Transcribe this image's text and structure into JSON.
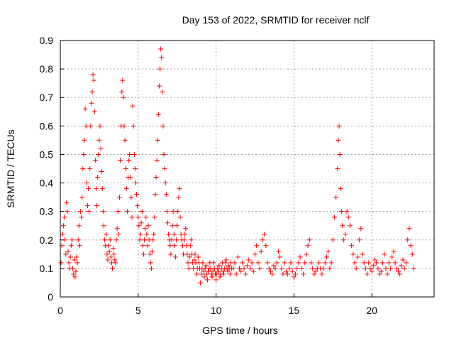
{
  "chart_data": {
    "type": "scatter",
    "title": "Day 153 of 2022, SRMTID for receiver nclf",
    "xlabel": "GPS time / hours",
    "ylabel": "SRMTID / TECUs",
    "xlim": [
      0,
      24
    ],
    "ylim": [
      0,
      0.9
    ],
    "xticks": [
      0,
      5,
      10,
      15,
      20
    ],
    "yticks": [
      0,
      0.1,
      0.2,
      0.3,
      0.4,
      0.5,
      0.6,
      0.7,
      0.8,
      0.9
    ],
    "grid": true,
    "marker": "+",
    "series": [
      {
        "name": "SRMTID",
        "color": "#ff0000",
        "x": [
          0.05,
          0.1,
          0.15,
          0.2,
          0.25,
          0.3,
          0.35,
          0.4,
          0.45,
          0.5,
          0.55,
          0.6,
          0.65,
          0.7,
          0.75,
          0.8,
          0.85,
          0.9,
          0.95,
          1.0,
          1.05,
          1.1,
          1.15,
          1.2,
          1.25,
          1.3,
          1.35,
          1.4,
          1.45,
          1.5,
          1.55,
          1.6,
          1.65,
          1.7,
          1.75,
          1.8,
          1.85,
          1.9,
          1.95,
          2.0,
          2.05,
          2.1,
          2.15,
          2.2,
          2.25,
          2.3,
          2.35,
          2.4,
          2.45,
          2.5,
          2.55,
          2.6,
          2.65,
          2.7,
          2.75,
          2.8,
          2.85,
          2.9,
          2.95,
          3.0,
          3.05,
          3.1,
          3.15,
          3.2,
          3.25,
          3.3,
          3.35,
          3.4,
          3.45,
          3.5,
          3.55,
          3.6,
          3.65,
          3.7,
          3.75,
          3.8,
          3.85,
          3.9,
          3.95,
          4.0,
          4.05,
          4.1,
          4.15,
          4.2,
          4.25,
          4.3,
          4.35,
          4.4,
          4.45,
          4.5,
          4.55,
          4.6,
          4.65,
          4.7,
          4.75,
          4.8,
          4.85,
          4.9,
          4.95,
          5.0,
          5.05,
          5.1,
          5.15,
          5.2,
          5.25,
          5.3,
          5.35,
          5.4,
          5.45,
          5.5,
          5.55,
          5.6,
          5.65,
          5.7,
          5.75,
          5.8,
          5.85,
          5.9,
          5.95,
          6.0,
          6.05,
          6.1,
          6.15,
          6.2,
          6.25,
          6.3,
          6.35,
          6.4,
          6.45,
          6.5,
          6.55,
          6.6,
          6.65,
          6.7,
          6.75,
          6.8,
          6.85,
          6.9,
          6.95,
          7.0,
          7.05,
          7.1,
          7.15,
          7.2,
          7.25,
          7.3,
          7.35,
          7.4,
          7.45,
          7.5,
          7.55,
          7.6,
          7.65,
          7.7,
          7.75,
          7.8,
          7.85,
          7.9,
          7.95,
          8.0,
          8.05,
          8.1,
          8.15,
          8.2,
          8.25,
          8.3,
          8.35,
          8.4,
          8.45,
          8.5,
          8.55,
          8.6,
          8.65,
          8.7,
          8.75,
          8.8,
          8.85,
          8.9,
          8.95,
          9.0,
          9.05,
          9.1,
          9.15,
          9.2,
          9.25,
          9.3,
          9.35,
          9.4,
          9.45,
          9.5,
          9.55,
          9.6,
          9.65,
          9.7,
          9.75,
          9.8,
          9.85,
          9.9,
          9.95,
          10.0,
          10.05,
          10.1,
          10.15,
          10.2,
          10.25,
          10.3,
          10.35,
          10.4,
          10.45,
          10.5,
          10.55,
          10.6,
          10.65,
          10.7,
          10.75,
          10.8,
          10.85,
          10.9,
          10.95,
          11.0,
          11.1,
          11.2,
          11.3,
          11.4,
          11.5,
          11.6,
          11.7,
          11.8,
          11.9,
          12.0,
          12.1,
          12.2,
          12.3,
          12.4,
          12.5,
          12.6,
          12.7,
          12.8,
          12.9,
          13.0,
          13.1,
          13.2,
          13.3,
          13.4,
          13.5,
          13.6,
          13.7,
          13.8,
          13.9,
          14.0,
          14.1,
          14.2,
          14.3,
          14.4,
          14.5,
          14.6,
          14.7,
          14.8,
          14.9,
          15.0,
          15.1,
          15.2,
          15.3,
          15.4,
          15.5,
          15.6,
          15.7,
          15.8,
          15.9,
          16.0,
          16.1,
          16.2,
          16.3,
          16.4,
          16.5,
          16.6,
          16.7,
          16.8,
          16.9,
          17.0,
          17.1,
          17.2,
          17.3,
          17.4,
          17.5,
          17.6,
          17.7,
          17.8,
          17.85,
          17.9,
          17.95,
          18.0,
          18.05,
          18.1,
          18.2,
          18.3,
          18.4,
          18.5,
          18.6,
          18.7,
          18.8,
          18.9,
          19.0,
          19.1,
          19.2,
          19.3,
          19.4,
          19.5,
          19.6,
          19.7,
          19.8,
          19.9,
          20.0,
          20.1,
          20.2,
          20.3,
          20.4,
          20.5,
          20.6,
          20.7,
          20.8,
          20.9,
          21.0,
          21.1,
          21.2,
          21.3,
          21.4,
          21.5,
          21.6,
          21.7,
          21.8,
          21.9,
          22.0,
          22.1,
          22.2,
          22.3,
          22.4,
          22.5,
          22.6,
          22.7
        ],
        "y": [
          0.12,
          0.18,
          0.22,
          0.25,
          0.28,
          0.2,
          0.15,
          0.33,
          0.3,
          0.16,
          0.12,
          0.1,
          0.14,
          0.18,
          0.2,
          0.1,
          0.08,
          0.13,
          0.07,
          0.09,
          0.14,
          0.12,
          0.2,
          0.25,
          0.18,
          0.3,
          0.28,
          0.35,
          0.45,
          0.5,
          0.55,
          0.66,
          0.6,
          0.4,
          0.32,
          0.38,
          0.3,
          0.45,
          0.6,
          0.68,
          0.72,
          0.78,
          0.76,
          0.65,
          0.48,
          0.38,
          0.32,
          0.42,
          0.5,
          0.55,
          0.6,
          0.52,
          0.44,
          0.38,
          0.3,
          0.25,
          0.2,
          0.18,
          0.22,
          0.15,
          0.13,
          0.18,
          0.16,
          0.2,
          0.14,
          0.12,
          0.1,
          0.17,
          0.15,
          0.13,
          0.12,
          0.2,
          0.24,
          0.3,
          0.22,
          0.35,
          0.48,
          0.6,
          0.72,
          0.76,
          0.7,
          0.6,
          0.55,
          0.45,
          0.38,
          0.3,
          0.42,
          0.48,
          0.5,
          0.42,
          0.35,
          0.28,
          0.67,
          0.6,
          0.5,
          0.45,
          0.4,
          0.36,
          0.32,
          0.28,
          0.25,
          0.2,
          0.22,
          0.26,
          0.3,
          0.18,
          0.15,
          0.2,
          0.24,
          0.28,
          0.22,
          0.18,
          0.25,
          0.2,
          0.15,
          0.12,
          0.1,
          0.16,
          0.2,
          0.22,
          0.28,
          0.36,
          0.42,
          0.48,
          0.55,
          0.64,
          0.74,
          0.8,
          0.87,
          0.84,
          0.72,
          0.6,
          0.5,
          0.45,
          0.4,
          0.36,
          0.3,
          0.26,
          0.22,
          0.2,
          0.18,
          0.15,
          0.2,
          0.25,
          0.3,
          0.22,
          0.18,
          0.14,
          0.2,
          0.25,
          0.3,
          0.35,
          0.38,
          0.28,
          0.22,
          0.2,
          0.18,
          0.15,
          0.2,
          0.22,
          0.24,
          0.18,
          0.15,
          0.12,
          0.1,
          0.14,
          0.18,
          0.2,
          0.15,
          0.12,
          0.1,
          0.13,
          0.15,
          0.12,
          0.08,
          0.1,
          0.14,
          0.12,
          0.1,
          0.05,
          0.08,
          0.1,
          0.12,
          0.09,
          0.07,
          0.1,
          0.11,
          0.08,
          0.06,
          0.09,
          0.1,
          0.12,
          0.1,
          0.08,
          0.07,
          0.09,
          0.12,
          0.1,
          0.08,
          0.06,
          0.08,
          0.1,
          0.09,
          0.11,
          0.07,
          0.08,
          0.1,
          0.12,
          0.09,
          0.08,
          0.1,
          0.12,
          0.13,
          0.1,
          0.09,
          0.11,
          0.1,
          0.08,
          0.12,
          0.1,
          0.1,
          0.12,
          0.08,
          0.14,
          0.1,
          0.09,
          0.12,
          0.1,
          0.08,
          0.11,
          0.13,
          0.1,
          0.12,
          0.09,
          0.15,
          0.18,
          0.12,
          0.1,
          0.16,
          0.2,
          0.22,
          0.18,
          0.12,
          0.1,
          0.09,
          0.08,
          0.11,
          0.1,
          0.12,
          0.16,
          0.14,
          0.1,
          0.08,
          0.12,
          0.09,
          0.08,
          0.1,
          0.12,
          0.09,
          0.07,
          0.08,
          0.1,
          0.12,
          0.14,
          0.1,
          0.08,
          0.12,
          0.15,
          0.18,
          0.2,
          0.12,
          0.1,
          0.08,
          0.09,
          0.1,
          0.12,
          0.1,
          0.08,
          0.1,
          0.12,
          0.14,
          0.16,
          0.1,
          0.12,
          0.2,
          0.28,
          0.35,
          0.45,
          0.55,
          0.6,
          0.5,
          0.38,
          0.3,
          0.25,
          0.2,
          0.22,
          0.3,
          0.28,
          0.25,
          0.18,
          0.15,
          0.12,
          0.1,
          0.14,
          0.2,
          0.24,
          0.15,
          0.12,
          0.1,
          0.08,
          0.12,
          0.1,
          0.09,
          0.11,
          0.13,
          0.12,
          0.1,
          0.08,
          0.09,
          0.12,
          0.15,
          0.1,
          0.08,
          0.12,
          0.1,
          0.14,
          0.16,
          0.12,
          0.1,
          0.09,
          0.08,
          0.11,
          0.13,
          0.1,
          0.12,
          0.2,
          0.24,
          0.18,
          0.15,
          0.1
        ]
      }
    ]
  }
}
